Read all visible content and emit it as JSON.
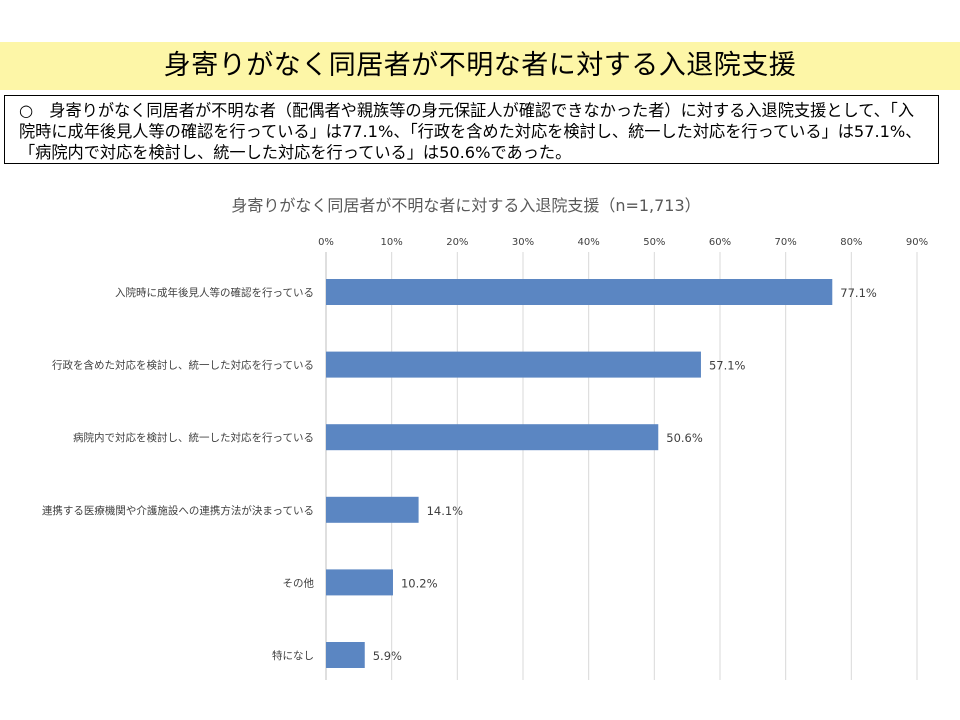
{
  "slide": {
    "title": "身寄りがなく同居者が不明な者に対する入退院支援",
    "summary": "○　身寄りがなく同居者が不明な者（配偶者や親族等の身元保証人が確認できなかった者）に対する入退院支援として、「入院時に成年後見人等の確認を行っている」は77.1%、「行政を含めた対応を検討し、統一した対応を行っている」は57.1%、「病院内で対応を検討し、統一した対応を行っている」は50.6%であった。",
    "colors": {
      "title_band": "#fdf6a7",
      "bar": "#5b86c2"
    }
  },
  "chart_data": {
    "type": "bar",
    "orientation": "horizontal",
    "title": "身寄りがなく同居者が不明な者に対する入退院支援（n=1,713）",
    "categories": [
      "入院時に成年後見人等の確認を行っている",
      "行政を含めた対応を検討し、統一した対応を行っている",
      "病院内で対応を検討し、統一した対応を行っている",
      "連携する医療機関や介護施設への連携方法が決まっている",
      "その他",
      "特になし"
    ],
    "values": [
      77.1,
      57.1,
      50.6,
      14.1,
      10.2,
      5.9
    ],
    "value_labels": [
      "77.1%",
      "57.1%",
      "50.6%",
      "14.1%",
      "10.2%",
      "5.9%"
    ],
    "xlim": [
      0,
      90
    ],
    "xticks": [
      0,
      10,
      20,
      30,
      40,
      50,
      60,
      70,
      80,
      90
    ],
    "xtick_labels": [
      "0%",
      "10%",
      "20%",
      "30%",
      "40%",
      "50%",
      "60%",
      "70%",
      "80%",
      "90%"
    ],
    "xlabel": "",
    "ylabel": "",
    "grid": true,
    "legend": "none",
    "axis_position": "top"
  }
}
